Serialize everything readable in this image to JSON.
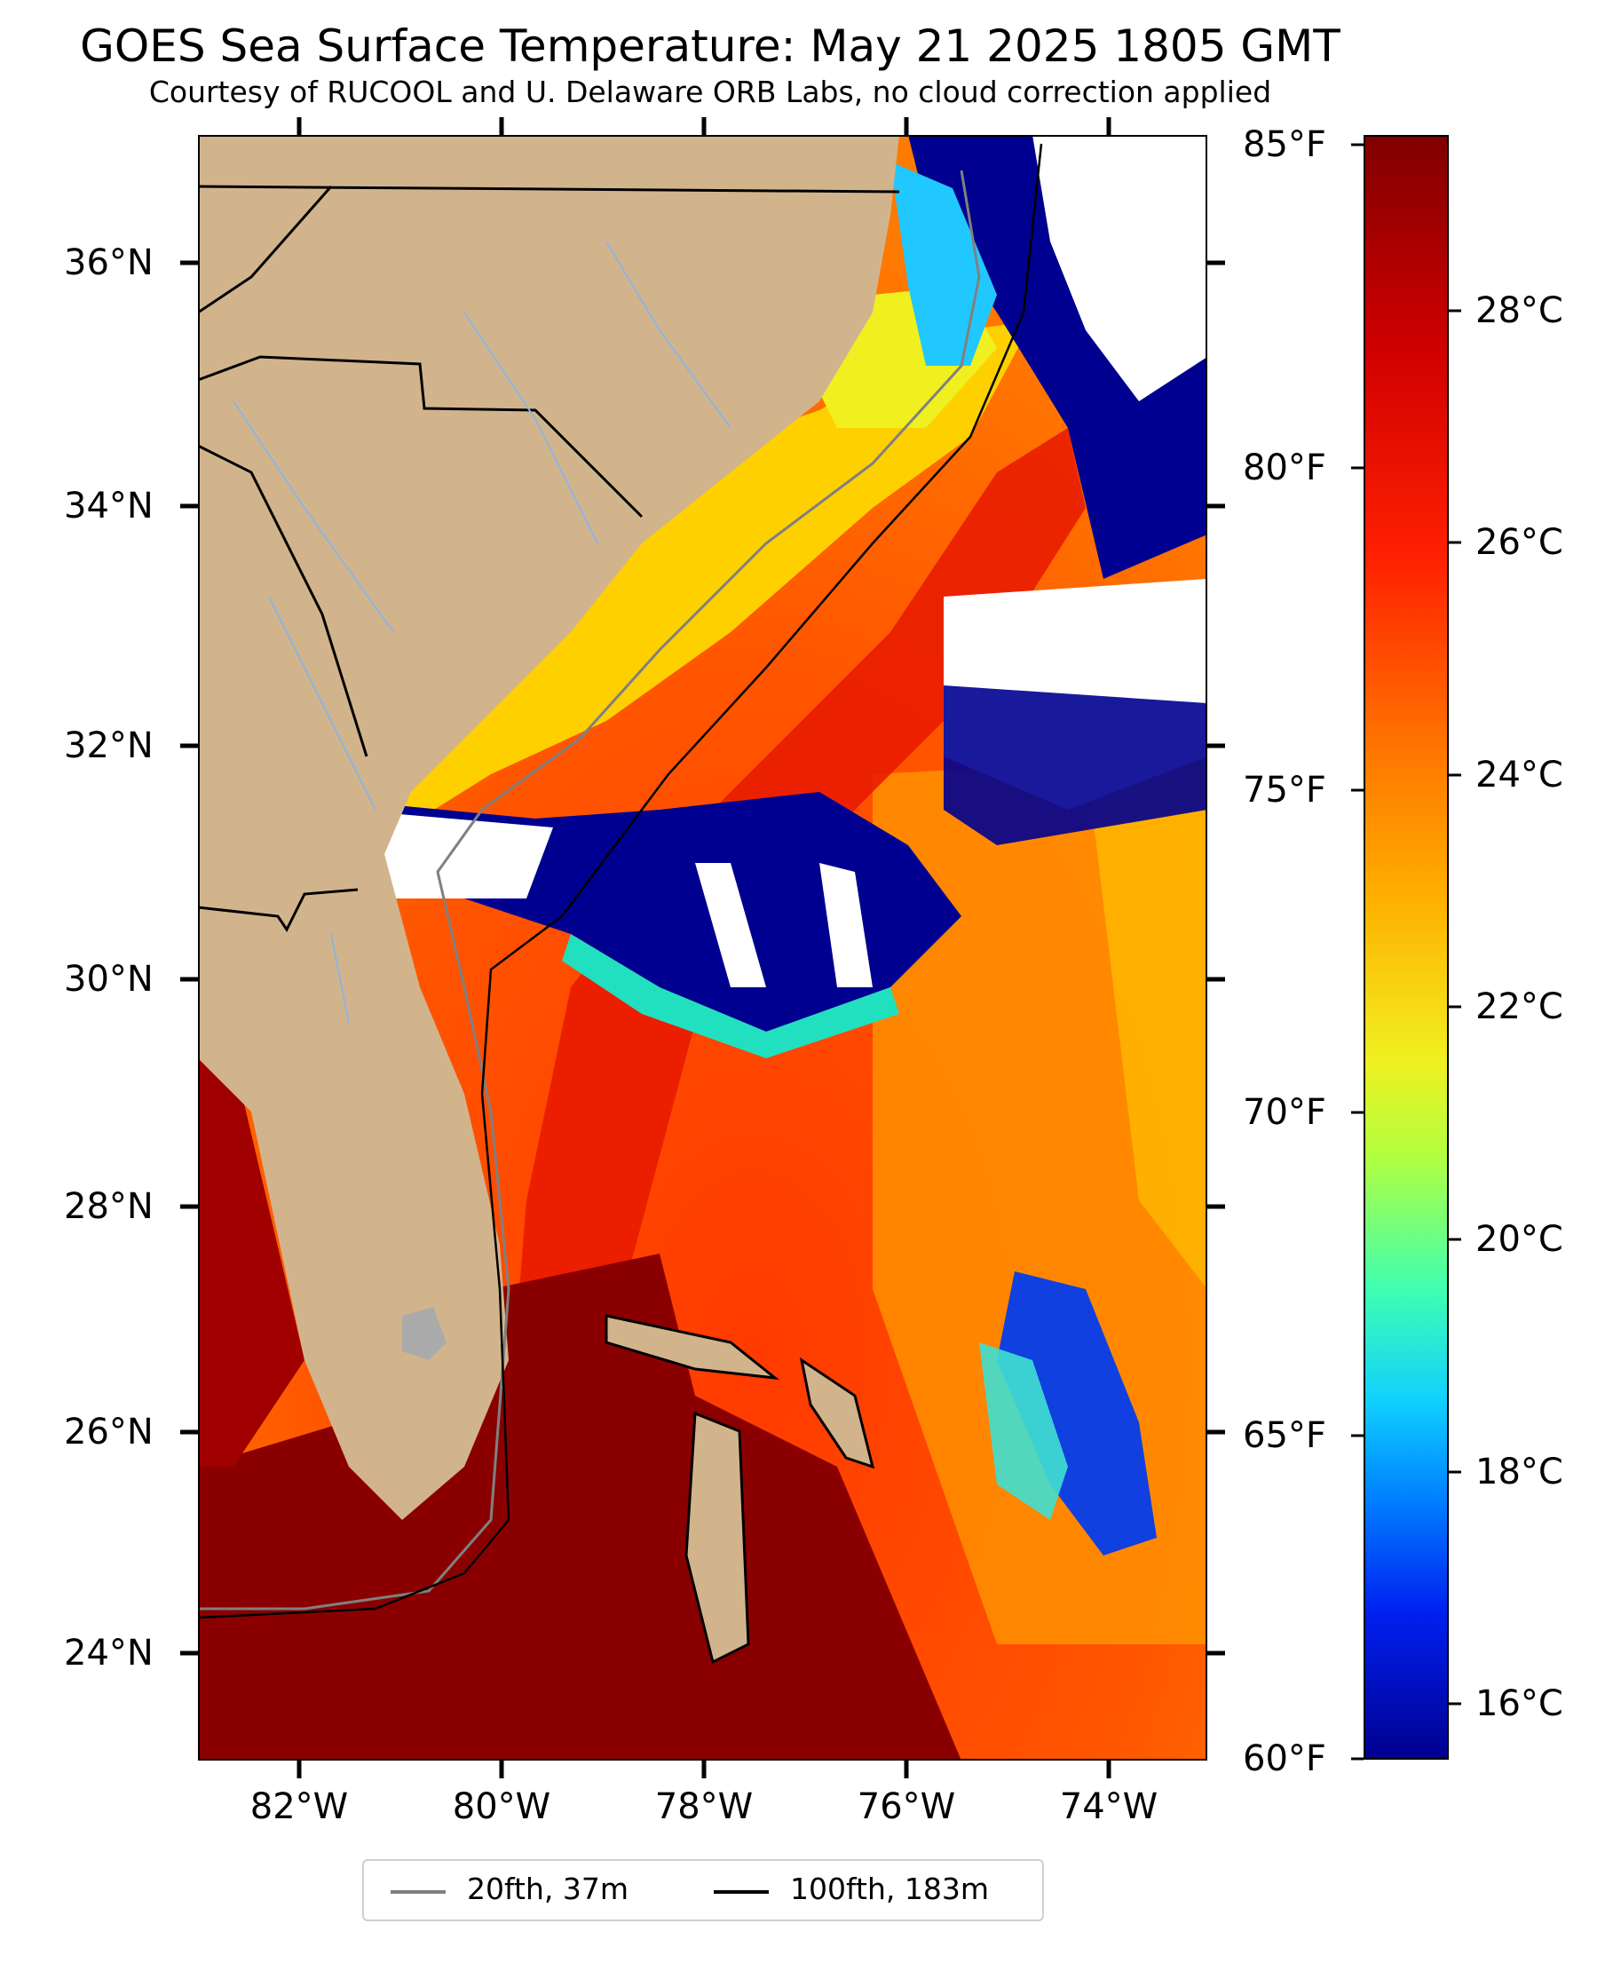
{
  "title": "GOES Sea Surface Temperature: May 21 2025 1805 GMT",
  "subtitle": "Courtesy of RUCOOL and U. Delaware ORB Labs, no cloud correction applied",
  "latitude_labels": [
    "36°N",
    "34°N",
    "32°N",
    "30°N",
    "28°N",
    "26°N",
    "24°N"
  ],
  "longitude_labels": [
    "82°W",
    "80°W",
    "78°W",
    "76°W",
    "74°W"
  ],
  "fahrenheit_labels": [
    "85°F",
    "80°F",
    "75°F",
    "70°F",
    "65°F",
    "60°F"
  ],
  "celsius_labels": [
    "28°C",
    "26°C",
    "24°C",
    "22°C",
    "20°C",
    "18°C",
    "16°C"
  ],
  "legend": {
    "items": [
      {
        "label": "20fth, 37m",
        "color": "#808080"
      },
      {
        "label": "100fth, 183m",
        "color": "#000000"
      }
    ]
  },
  "colors": {
    "land": "#d2b48c",
    "cloud": "#ffffff",
    "cold": "#000090",
    "warm": "#800000"
  }
}
